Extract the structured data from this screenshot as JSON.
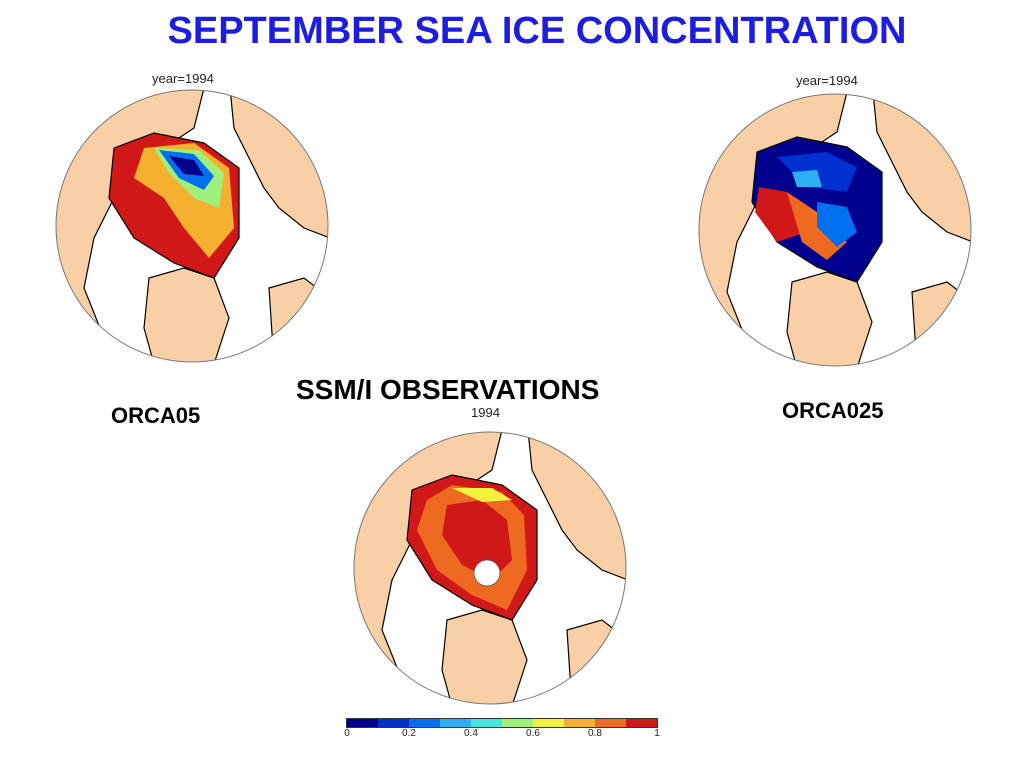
{
  "title": "SEPTEMBER SEA ICE CONCENTRATION",
  "maps": {
    "left": {
      "year_label": "year=1994",
      "name": "ORCA05"
    },
    "right": {
      "year_label": "year=1994",
      "name": "ORCA025"
    },
    "bottom": {
      "year_label": "1994",
      "name": "SSM/I OBSERVATIONS"
    }
  },
  "colorbar": {
    "colors": [
      "#00008f",
      "#0030d0",
      "#0070f0",
      "#2cb0f5",
      "#44e8e0",
      "#9ef07a",
      "#f2f23c",
      "#f5b030",
      "#ee6a20",
      "#d01818"
    ],
    "tick_labels": [
      "0",
      "0.2",
      "0.4",
      "0.6",
      "0.8",
      "1"
    ],
    "tick_values": [
      0,
      0.2,
      0.4,
      0.6,
      0.8,
      1
    ]
  },
  "land_color": "#f9cfa5"
}
